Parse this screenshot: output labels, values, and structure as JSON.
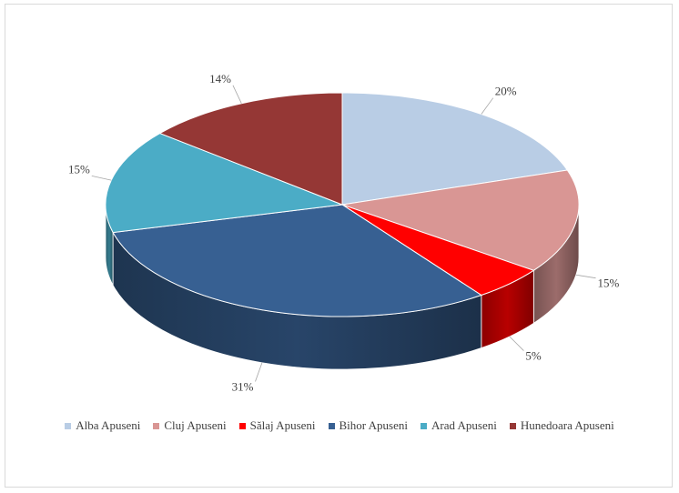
{
  "chart_data": {
    "type": "pie",
    "style": "3d",
    "title": "",
    "legend_position": "bottom",
    "slices": [
      {
        "name": "Alba Apuseni",
        "value": 20,
        "label": "20%",
        "color": "#b9cde5"
      },
      {
        "name": "Cluj Apuseni",
        "value": 15,
        "label": "15%",
        "color": "#d99694"
      },
      {
        "name": "Sălaj Apuseni",
        "value": 5,
        "label": "5%",
        "color": "#ff0000"
      },
      {
        "name": "Bihor Apuseni",
        "value": 31,
        "label": "31%",
        "color": "#376092"
      },
      {
        "name": "Arad Apuseni",
        "value": 15,
        "label": "15%",
        "color": "#4bacc6"
      },
      {
        "name": "Hunedoara Apuseni",
        "value": 14,
        "label": "14%",
        "color": "#953735"
      }
    ]
  }
}
